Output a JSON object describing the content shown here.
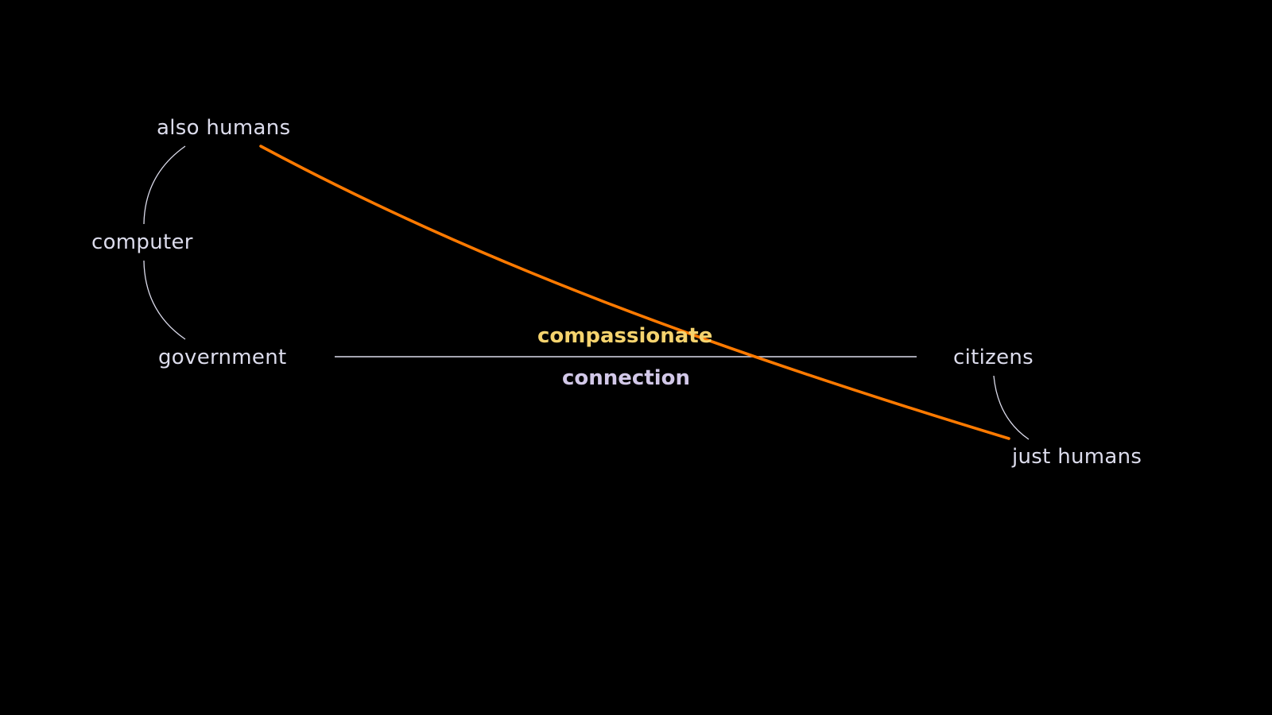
{
  "labels": {
    "also_humans": "also humans",
    "computer": "computer",
    "government": "government",
    "citizens": "citizens",
    "just_humans": "just humans",
    "compassionate": "compassionate",
    "connection": "connection"
  },
  "colors": {
    "background": "#000000",
    "text": "#dcdcec",
    "lines": "#dcdcec",
    "compassionate": "#f5d36e",
    "connection": "#d2c8e8",
    "accent_line": "#ff7a00"
  }
}
